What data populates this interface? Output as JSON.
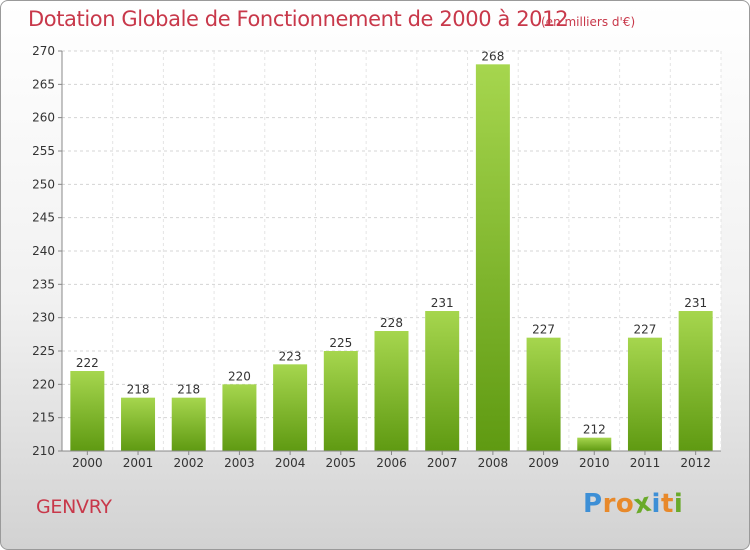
{
  "chart_data": {
    "type": "bar",
    "title": "Dotation Globale de Fonctionnement de 2000 à 2012",
    "subtitle": "(en milliers d'€)",
    "categories": [
      "2000",
      "2001",
      "2002",
      "2003",
      "2004",
      "2005",
      "2006",
      "2007",
      "2008",
      "2009",
      "2010",
      "2011",
      "2012"
    ],
    "values": [
      222,
      218,
      218,
      220,
      223,
      225,
      228,
      231,
      268,
      227,
      212,
      227,
      231
    ],
    "ylim": [
      210,
      270
    ],
    "yticks": [
      210,
      215,
      220,
      225,
      230,
      235,
      240,
      245,
      250,
      255,
      260,
      265,
      270
    ],
    "grid": true,
    "bar_color_top": "#a6d64e",
    "bar_color_bottom": "#5f9a12"
  },
  "footer": {
    "commune": "GENVRY",
    "logo_letters": [
      {
        "ch": "P",
        "color": "#3d8fd6"
      },
      {
        "ch": "r",
        "color": "#e8892a"
      },
      {
        "ch": "o",
        "color": "#e8892a"
      },
      {
        "ch": "x",
        "color": "#6aaa2a"
      },
      {
        "ch": "i",
        "color": "#3d8fd6"
      },
      {
        "ch": "t",
        "color": "#e8892a"
      },
      {
        "ch": "i",
        "color": "#6aaa2a"
      }
    ]
  }
}
